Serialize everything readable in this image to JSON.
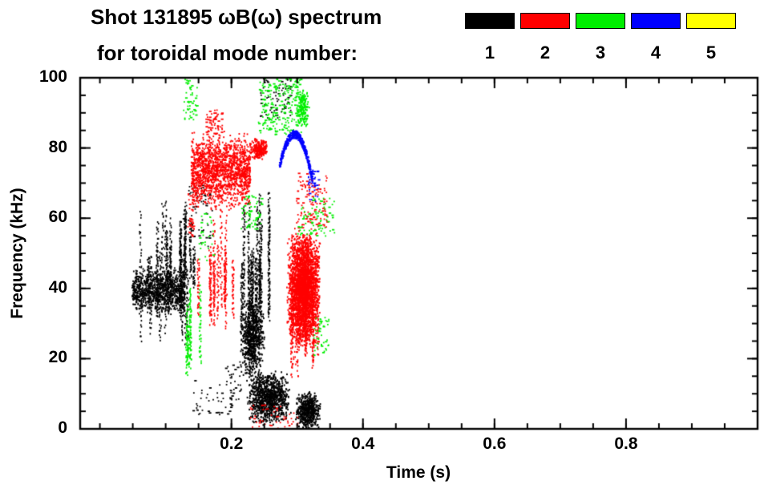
{
  "chart_data": {
    "type": "scatter",
    "title": "Shot 131895 ωB(ω) spectrum",
    "subtitle": "for toroidal mode number:",
    "xlabel": "Time (s)",
    "ylabel": "Frequency (kHz)",
    "xlim": [
      -0.03,
      1.0
    ],
    "ylim": [
      0,
      100
    ],
    "xticks": [
      0.2,
      0.4,
      0.6,
      0.8
    ],
    "xtick_labels": [
      "0.2",
      "0.4",
      "0.6",
      "0.8"
    ],
    "x_minor_step": 0.05,
    "yticks": [
      0,
      20,
      40,
      60,
      80,
      100
    ],
    "ytick_labels": [
      "0",
      "20",
      "40",
      "60",
      "80",
      "100"
    ],
    "y_minor_step": 5,
    "grid": false,
    "frame_color": "#000000",
    "legend": {
      "position": "top-right",
      "entries": [
        {
          "label": "1",
          "color": "#000000"
        },
        {
          "label": "2",
          "color": "#ff0000"
        },
        {
          "label": "3",
          "color": "#00ee00"
        },
        {
          "label": "4",
          "color": "#0000ff"
        },
        {
          "label": "5",
          "color": "#ffff00"
        }
      ]
    },
    "series": [
      {
        "name": "toroidal mode n=1",
        "toroidal_mode": 1,
        "color": "#000000",
        "clusters": [
          {
            "type": "band",
            "t": [
              0.048,
              0.128
            ],
            "f": [
              33,
              46
            ],
            "n": 1000
          },
          {
            "type": "streaks",
            "t": [
              0.058,
              0.135
            ],
            "f": [
              24,
              66
            ],
            "cols": 16,
            "n": 640
          },
          {
            "type": "streaks",
            "t": [
              0.1,
              0.148
            ],
            "f": [
              40,
              63
            ],
            "cols": 7,
            "n": 280
          },
          {
            "type": "specks",
            "t": [
              0.125,
              0.17
            ],
            "f": [
              52,
              70
            ],
            "n": 70
          },
          {
            "type": "specks",
            "t": [
              0.14,
              0.2
            ],
            "f": [
              4,
              14
            ],
            "n": 45
          },
          {
            "type": "specks",
            "t": [
              0.19,
              0.215
            ],
            "f": [
              8,
              20
            ],
            "n": 30
          },
          {
            "type": "streaks",
            "t": [
              0.212,
              0.258
            ],
            "f": [
              25,
              71
            ],
            "cols": 13,
            "n": 780
          },
          {
            "type": "blob",
            "t": [
              0.212,
              0.25
            ],
            "f": [
              14,
              38
            ],
            "n": 700
          },
          {
            "type": "blob",
            "t": [
              0.222,
              0.29
            ],
            "f": [
              1,
              17
            ],
            "n": 1000
          },
          {
            "type": "specks",
            "t": [
              0.243,
              0.29
            ],
            "f": [
              88,
              100
            ],
            "n": 70
          },
          {
            "type": "blob",
            "t": [
              0.296,
              0.335
            ],
            "f": [
              0,
              11
            ],
            "n": 520
          }
        ]
      },
      {
        "name": "toroidal mode n=2",
        "toroidal_mode": 2,
        "color": "#ff0000",
        "clusters": [
          {
            "type": "specks",
            "t": [
              0.132,
              0.142
            ],
            "f": [
              55,
              68
            ],
            "n": 40
          },
          {
            "type": "band",
            "t": [
              0.138,
              0.228
            ],
            "f": [
              63,
              84
            ],
            "n": 1700
          },
          {
            "type": "streaks",
            "t": [
              0.148,
              0.215
            ],
            "f": [
              28,
              66
            ],
            "cols": 11,
            "n": 420
          },
          {
            "type": "specks",
            "t": [
              0.16,
              0.185
            ],
            "f": [
              84,
              91
            ],
            "n": 60
          },
          {
            "type": "blob",
            "t": [
              0.227,
              0.255
            ],
            "f": [
              77,
              83
            ],
            "n": 240
          },
          {
            "type": "blob",
            "t": [
              0.283,
              0.335
            ],
            "f": [
              23,
              57
            ],
            "n": 2800
          },
          {
            "type": "streaks",
            "t": [
              0.286,
              0.332
            ],
            "f": [
              13,
              60
            ],
            "cols": 10,
            "n": 380
          },
          {
            "type": "specks",
            "t": [
              0.298,
              0.345
            ],
            "f": [
              57,
              73
            ],
            "n": 130
          },
          {
            "type": "specks",
            "t": [
              0.225,
              0.3
            ],
            "f": [
              0,
              7
            ],
            "n": 50
          }
        ]
      },
      {
        "name": "toroidal mode n=3",
        "toroidal_mode": 3,
        "color": "#00ee00",
        "clusters": [
          {
            "type": "streaks",
            "t": [
              0.128,
              0.152
            ],
            "f": [
              15,
              42
            ],
            "cols": 5,
            "n": 200
          },
          {
            "type": "specks",
            "t": [
              0.126,
              0.148
            ],
            "f": [
              88,
              100
            ],
            "n": 50
          },
          {
            "type": "specks",
            "t": [
              0.15,
              0.175
            ],
            "f": [
              48,
              62
            ],
            "n": 30
          },
          {
            "type": "specks",
            "t": [
              0.213,
              0.245
            ],
            "f": [
              57,
              67
            ],
            "n": 60
          },
          {
            "type": "specks",
            "t": [
              0.24,
              0.306
            ],
            "f": [
              84,
              100
            ],
            "n": 230
          },
          {
            "type": "blob",
            "t": [
              0.297,
              0.318
            ],
            "f": [
              86,
              97
            ],
            "n": 170
          },
          {
            "type": "specks",
            "t": [
              0.3,
              0.356
            ],
            "f": [
              55,
              66
            ],
            "n": 80
          },
          {
            "type": "specks",
            "t": [
              0.324,
              0.347
            ],
            "f": [
              21,
              32
            ],
            "n": 45
          }
        ]
      },
      {
        "name": "toroidal mode n=4",
        "toroidal_mode": 4,
        "color": "#0000ff",
        "clusters": [
          {
            "type": "arc",
            "t": [
              0.272,
              0.322
            ],
            "f": [
              71,
              84
            ],
            "f_start": 75,
            "f_peak": 84,
            "f_end": 71,
            "n": 430
          },
          {
            "type": "specks",
            "t": [
              0.316,
              0.332
            ],
            "f": [
              65,
              74
            ],
            "n": 35
          }
        ]
      },
      {
        "name": "toroidal mode n=5",
        "toroidal_mode": 5,
        "color": "#ffff00",
        "clusters": []
      }
    ]
  }
}
